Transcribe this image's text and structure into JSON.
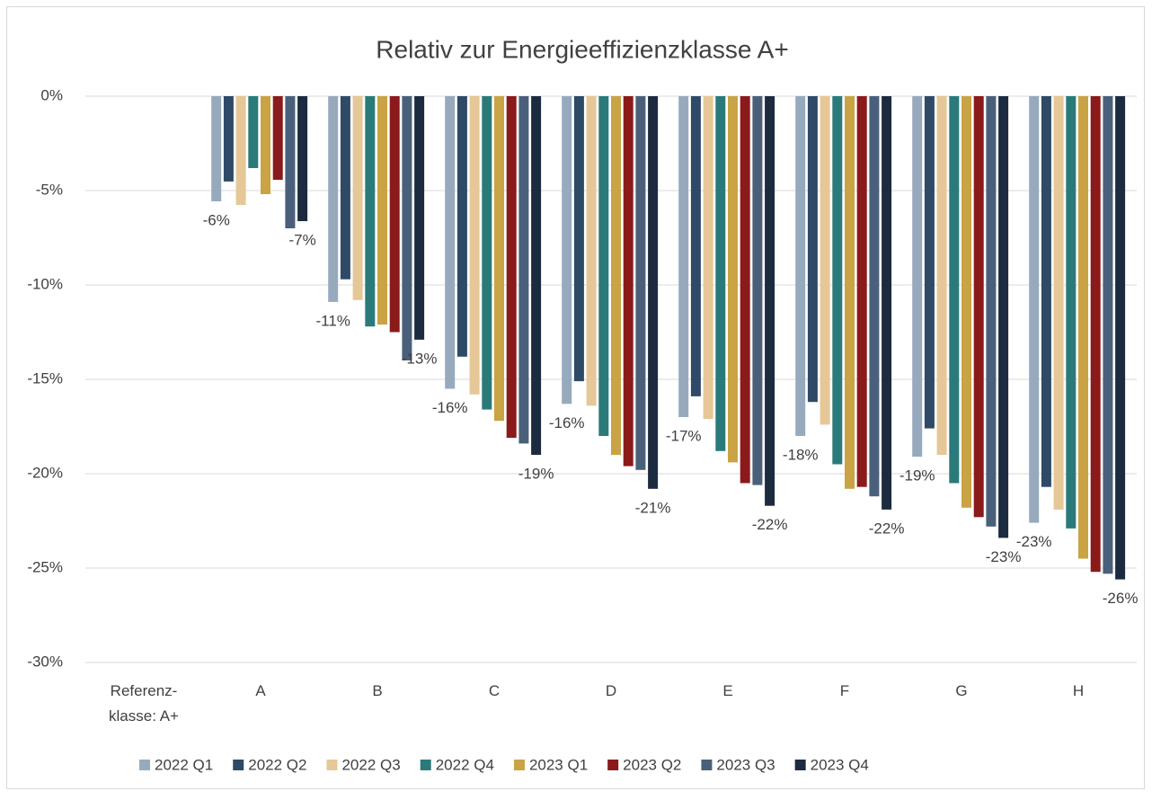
{
  "chart_data": {
    "type": "bar",
    "title": "Relativ zur Energieeffizienzklasse A+",
    "categories": [
      "Referenz-\nklasse: A+",
      "A",
      "B",
      "C",
      "D",
      "E",
      "F",
      "G",
      "H"
    ],
    "series": [
      {
        "name": "2022 Q1",
        "color": "#97aabd",
        "values": [
          null,
          -5.57,
          -10.9,
          -15.5,
          -16.3,
          -17.0,
          -18.0,
          -19.1,
          -22.6
        ],
        "value_labels": [
          null,
          "-6%",
          "-11%",
          "-16%",
          "-16%",
          "-17%",
          "-18%",
          "-19%",
          "-23%"
        ]
      },
      {
        "name": "2022 Q2",
        "color": "#2e4a66",
        "values": [
          null,
          -4.52,
          -9.7,
          -13.8,
          -15.1,
          -15.9,
          -16.2,
          -17.6,
          -20.7
        ]
      },
      {
        "name": "2022 Q3",
        "color": "#e6c797",
        "values": [
          null,
          -5.76,
          -10.8,
          -15.8,
          -16.4,
          -17.1,
          -17.4,
          -19.0,
          -21.9
        ]
      },
      {
        "name": "2022 Q4",
        "color": "#2b7a7a",
        "values": [
          null,
          -3.81,
          -12.2,
          -16.6,
          -18.0,
          -18.8,
          -19.5,
          -20.5,
          -22.9
        ]
      },
      {
        "name": "2023 Q1",
        "color": "#c9a344",
        "values": [
          null,
          -5.19,
          -12.1,
          -17.2,
          -19.0,
          -19.4,
          -20.8,
          -21.8,
          -24.5
        ]
      },
      {
        "name": "2023 Q2",
        "color": "#8b1a1a",
        "values": [
          null,
          -4.43,
          -12.5,
          -18.1,
          -19.6,
          -20.5,
          -20.7,
          -22.3,
          -25.2
        ]
      },
      {
        "name": "2023 Q3",
        "color": "#4a607a",
        "values": [
          null,
          -7.0,
          -14.0,
          -18.4,
          -19.8,
          -20.6,
          -21.2,
          -22.8,
          -25.3
        ]
      },
      {
        "name": "2023 Q4",
        "color": "#1c2b40",
        "values": [
          null,
          -6.62,
          -12.9,
          -19.0,
          -20.8,
          -21.7,
          -21.9,
          -23.4,
          -25.6
        ],
        "value_labels": [
          null,
          "-7%",
          "-13%",
          "-19%",
          "-21%",
          "-22%",
          "-22%",
          "-23%",
          "-26%"
        ]
      }
    ],
    "ylim": [
      -30,
      0
    ],
    "yticks": [
      {
        "value": 0,
        "label": "0%"
      },
      {
        "value": -5,
        "label": "-5%"
      },
      {
        "value": -10,
        "label": "-10%"
      },
      {
        "value": -15,
        "label": "-15%"
      },
      {
        "value": -20,
        "label": "-20%"
      },
      {
        "value": -25,
        "label": "-25%"
      },
      {
        "value": -30,
        "label": "-30%"
      }
    ],
    "grid": true,
    "legend": "bottom"
  }
}
